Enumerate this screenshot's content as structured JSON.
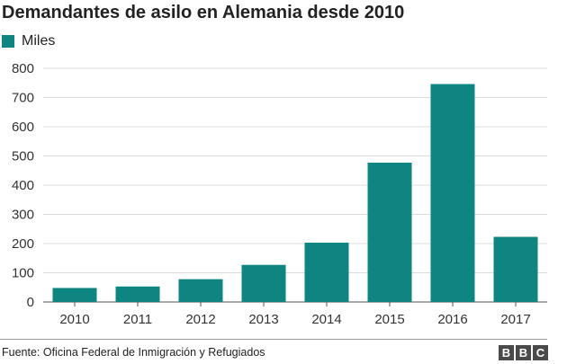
{
  "header": {
    "title": "Demandantes de asilo en Alemania desde 2010"
  },
  "footer": {
    "source": "Fuente: Oficina Federal de Inmigración y Refugiados",
    "logo_text": "BBC"
  },
  "chart_data": {
    "type": "bar",
    "title": "Demandantes de asilo en Alemania desde 2010",
    "xlabel": "",
    "ylabel": "",
    "categories": [
      "2010",
      "2011",
      "2012",
      "2013",
      "2014",
      "2015",
      "2016",
      "2017"
    ],
    "series": [
      {
        "name": "Miles",
        "values": [
          48,
          53,
          78,
          127,
          203,
          477,
          746,
          223
        ],
        "color": "#0f8582"
      }
    ],
    "ylim": [
      0,
      800
    ],
    "yticks": [
      0,
      100,
      200,
      300,
      400,
      500,
      600,
      700,
      800
    ],
    "grid": true,
    "legend": "top-left"
  }
}
